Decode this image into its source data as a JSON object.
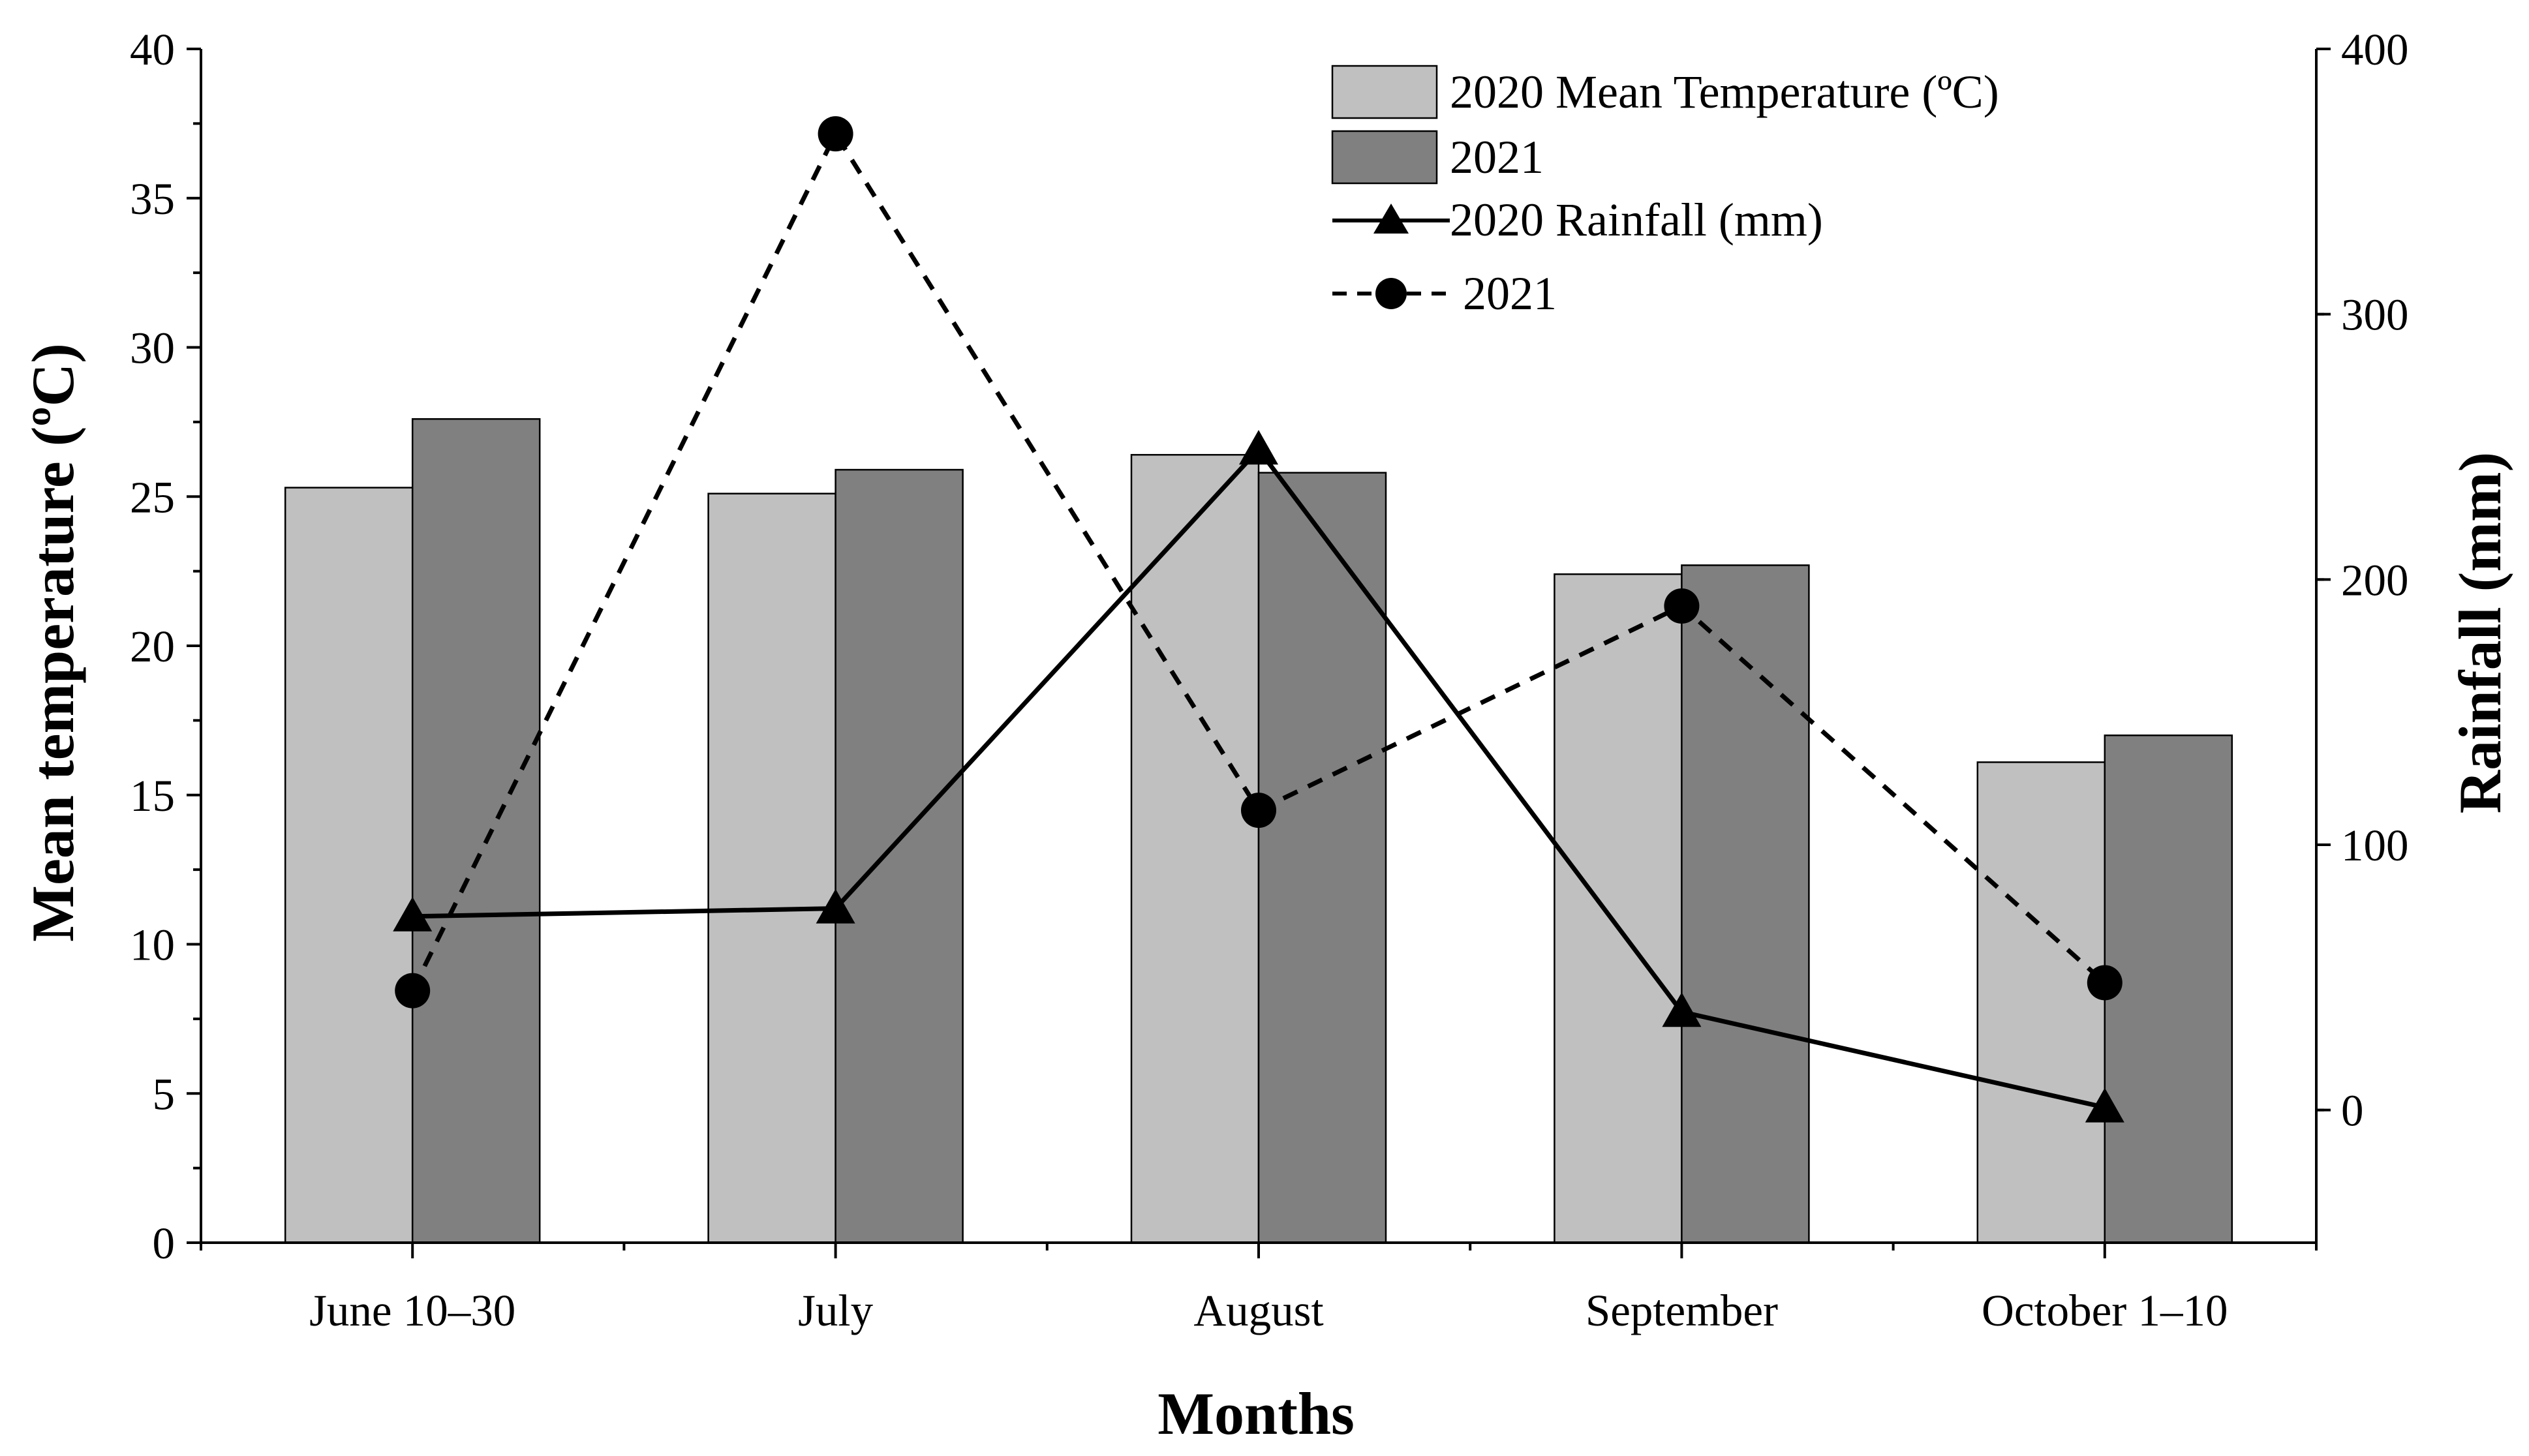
{
  "chart_data": {
    "type": "bar+line",
    "categories": [
      "June 10–30",
      "July",
      "August",
      "September",
      "October 1–10"
    ],
    "xlabel": "Months",
    "ylabel_left": "Mean temperature (ºC)",
    "ylabel_right": "Rainfall (mm)",
    "ylim_left": [
      0,
      40
    ],
    "yticks_left": [
      0,
      5,
      10,
      15,
      20,
      25,
      30,
      35,
      40
    ],
    "ylim_right": [
      -50,
      400
    ],
    "yticks_right": [
      0,
      100,
      200,
      300,
      400
    ],
    "grid": false,
    "legend_position": "top-right",
    "bar_series": [
      {
        "name": "2020 Mean Temperature (ºC)",
        "values": [
          25.3,
          25.1,
          26.4,
          22.4,
          16.1
        ],
        "color": "#c0c0c0"
      },
      {
        "name": "2021",
        "values": [
          27.6,
          25.9,
          25.8,
          22.7,
          17.0
        ],
        "color": "#808080"
      }
    ],
    "line_series": [
      {
        "name": "2020 Rainfall (mm)",
        "values": [
          73,
          76,
          249,
          37,
          1
        ],
        "marker": "triangle",
        "dash": "solid",
        "color": "#000000"
      },
      {
        "name": "2021",
        "values": [
          45,
          368,
          113,
          190,
          48
        ],
        "marker": "circle",
        "dash": "dashed",
        "color": "#000000"
      }
    ]
  }
}
